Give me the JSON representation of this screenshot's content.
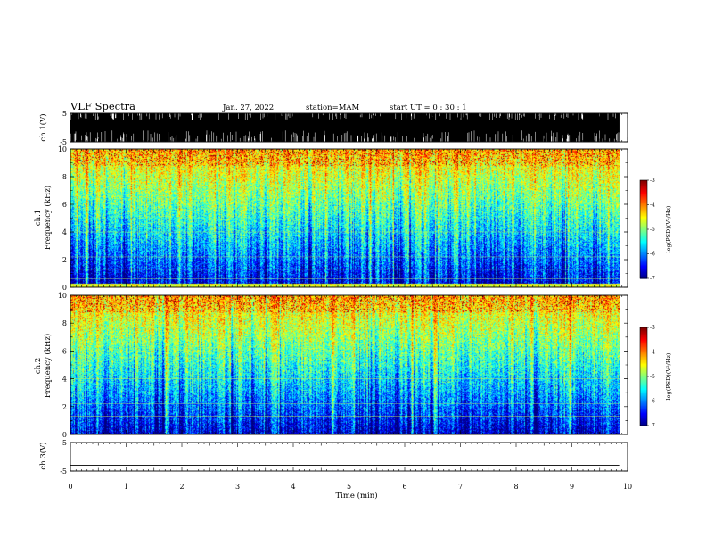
{
  "header": {
    "title": "VLF Spectra",
    "date": "Jan. 27, 2022",
    "station": "station=MAM",
    "start_ut": "start UT =  0 : 30 : 1"
  },
  "chart_data": [
    {
      "type": "line",
      "name": "waveform-ch1",
      "ylabel": "ch.1(V)",
      "ylim": [
        -5,
        5
      ],
      "yticks": [
        "5",
        "-5"
      ],
      "xlim": [
        0,
        10
      ],
      "signal": "dense bursts",
      "color": "#000000"
    },
    {
      "type": "heatmap",
      "name": "spectrogram-ch1",
      "ylabel_line1": "ch.1",
      "ylabel_line2": "Frequency (kHz)",
      "ylim": [
        0,
        10
      ],
      "yticks": [
        "0",
        "2",
        "4",
        "6",
        "8",
        "10"
      ],
      "xlim": [
        0,
        10
      ],
      "data_end_min": 9.85,
      "colorbar": {
        "label": "log(PSD)(V²/Hz)",
        "range": [
          -7,
          -3
        ],
        "ticks": [
          "-3",
          "-4",
          "-5",
          "-6",
          "-7"
        ],
        "colormap": "jet"
      }
    },
    {
      "type": "heatmap",
      "name": "spectrogram-ch2",
      "ylabel_line1": "ch.2",
      "ylabel_line2": "Frequency (kHz)",
      "ylim": [
        0,
        10
      ],
      "yticks": [
        "0",
        "2",
        "4",
        "6",
        "8",
        "10"
      ],
      "xlim": [
        0,
        10
      ],
      "data_end_min": 9.85,
      "colorbar": {
        "label": "log(PSD)(V²/Hz)",
        "range": [
          -7,
          -3
        ],
        "ticks": [
          "-3",
          "-4",
          "-5",
          "-6",
          "-7"
        ],
        "colormap": "jet"
      }
    },
    {
      "type": "line",
      "name": "waveform-ch3",
      "ylabel": "ch.3(V)",
      "ylim": [
        -5,
        5
      ],
      "yticks": [
        "5",
        "-5"
      ],
      "xlim": [
        0,
        10
      ],
      "xlabel": "Time (min)",
      "xticks": [
        "0",
        "1",
        "2",
        "3",
        "4",
        "5",
        "6",
        "7",
        "8",
        "9",
        "10"
      ],
      "signal": "flat line near -3 V",
      "color": "#000000"
    }
  ]
}
